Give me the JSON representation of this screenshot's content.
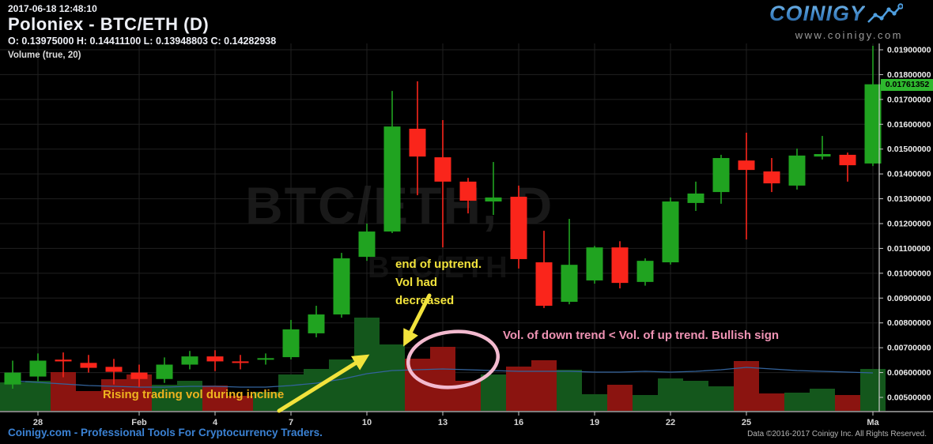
{
  "header": {
    "timestamp": "2017-06-18 12:48:10",
    "title": "Poloniex - BTC/ETH (D)",
    "ohlc_line": "O: 0.13975000 H: 0.14411100 L: 0.13948803 C: 0.14282938",
    "indicator_label": "Volume (true, 20)"
  },
  "logo": {
    "brand": "COINIGY",
    "url_text": "www.coinigy.com"
  },
  "watermark": {
    "line1": "BTC/ETH, D",
    "line2": "BTC/ETH"
  },
  "annotations": {
    "end_line1": "end of uptrend.",
    "end_line2": "Vol had",
    "end_line3": "decreased",
    "rising_vol": "Rising trading vol during incline",
    "bullish": "Vol. of down trend < Vol. of up trend. Bullish sign"
  },
  "footer": {
    "left": "Coinigy.com - Professional Tools For Cryptocurrency Traders.",
    "right": "Data ©2016-2017 Coinigy Inc. All Rights Reserved."
  },
  "colors": {
    "candle_up": "#20a320",
    "candle_down": "#fa251b",
    "vol_up": "#14571c",
    "vol_down": "#8b1410",
    "grid": "#202020",
    "axis": "#c8c8c8",
    "vol_ma": "#33639c",
    "badge_green": "#2eb82e",
    "accent_yellow": "#f2e33c",
    "accent_orange": "#eeb31f",
    "accent_pink": "#ef93b4",
    "logo_blue": "#4f9fe0",
    "footer_blue": "#3b82d4"
  },
  "price_axis": {
    "current_price": "0.01761352",
    "min": 0.005,
    "max": 0.019,
    "labels": [
      "0.01900000",
      "0.01800000",
      "0.01700000",
      "0.01600000",
      "0.01500000",
      "0.01400000",
      "0.01300000",
      "0.01200000",
      "0.01100000",
      "0.01000000",
      "0.00900000",
      "0.00800000",
      "0.00700000",
      "0.00600000",
      "0.00500000"
    ]
  },
  "time_axis": {
    "ticks": [
      {
        "label": "28",
        "day_index": 1
      },
      {
        "label": "Feb",
        "day_index": 5
      },
      {
        "label": "4",
        "day_index": 8
      },
      {
        "label": "7",
        "day_index": 11
      },
      {
        "label": "10",
        "day_index": 14
      },
      {
        "label": "13",
        "day_index": 17
      },
      {
        "label": "16",
        "day_index": 20
      },
      {
        "label": "19",
        "day_index": 23
      },
      {
        "label": "22",
        "day_index": 26
      },
      {
        "label": "25",
        "day_index": 29
      },
      {
        "label": "Ma",
        "day_index": 34
      }
    ]
  },
  "chart_data": {
    "type": "candlestick+volume",
    "symbol_note": "prices read from right axis 0.00500000-0.01900000; volume in relative units",
    "candles": [
      {
        "d": "Jan 27",
        "o": 0.00552,
        "h": 0.00648,
        "l": 0.00535,
        "c": 0.006,
        "v": 36
      },
      {
        "d": "Jan 28",
        "o": 0.00584,
        "h": 0.00677,
        "l": 0.00565,
        "c": 0.00648,
        "v": 38
      },
      {
        "d": "Jan 29",
        "o": 0.00652,
        "h": 0.00681,
        "l": 0.00581,
        "c": 0.00645,
        "v": 49
      },
      {
        "d": "Jan 30",
        "o": 0.00639,
        "h": 0.00671,
        "l": 0.006,
        "c": 0.00619,
        "v": 25
      },
      {
        "d": "Jan 31",
        "o": 0.00623,
        "h": 0.00655,
        "l": 0.00552,
        "c": 0.00603,
        "v": 40
      },
      {
        "d": "Feb 1",
        "o": 0.006,
        "h": 0.00632,
        "l": 0.00542,
        "c": 0.00574,
        "v": 46
      },
      {
        "d": "Feb 2",
        "o": 0.00574,
        "h": 0.00661,
        "l": 0.00558,
        "c": 0.00632,
        "v": 33
      },
      {
        "d": "Feb 3",
        "o": 0.00632,
        "h": 0.00687,
        "l": 0.00613,
        "c": 0.00665,
        "v": 38
      },
      {
        "d": "Feb 4",
        "o": 0.00665,
        "h": 0.0069,
        "l": 0.00606,
        "c": 0.00645,
        "v": 32
      },
      {
        "d": "Feb 5",
        "o": 0.00645,
        "h": 0.00671,
        "l": 0.00613,
        "c": 0.00639,
        "v": 19
      },
      {
        "d": "Feb 6",
        "o": 0.00652,
        "h": 0.00677,
        "l": 0.00632,
        "c": 0.00658,
        "v": 24
      },
      {
        "d": "Feb 7",
        "o": 0.00662,
        "h": 0.00812,
        "l": 0.00653,
        "c": 0.00774,
        "v": 46
      },
      {
        "d": "Feb 8",
        "o": 0.00758,
        "h": 0.00869,
        "l": 0.00742,
        "c": 0.00834,
        "v": 53
      },
      {
        "d": "Feb 9",
        "o": 0.00834,
        "h": 0.01082,
        "l": 0.00821,
        "c": 0.0106,
        "v": 65
      },
      {
        "d": "Feb 10",
        "o": 0.01066,
        "h": 0.012,
        "l": 0.0105,
        "c": 0.01168,
        "v": 118
      },
      {
        "d": "Feb 11",
        "o": 0.01168,
        "h": 0.01734,
        "l": 0.01162,
        "c": 0.01591,
        "v": 84
      },
      {
        "d": "Feb 12",
        "o": 0.01582,
        "h": 0.01773,
        "l": 0.01314,
        "c": 0.0147,
        "v": 66
      },
      {
        "d": "Feb 13",
        "o": 0.01467,
        "h": 0.01617,
        "l": 0.01104,
        "c": 0.01369,
        "v": 81
      },
      {
        "d": "Feb 14",
        "o": 0.01369,
        "h": 0.01384,
        "l": 0.01241,
        "c": 0.01292,
        "v": 38
      },
      {
        "d": "Feb 15",
        "o": 0.01289,
        "h": 0.01448,
        "l": 0.01235,
        "c": 0.01305,
        "v": 46
      },
      {
        "d": "Feb 16",
        "o": 0.01308,
        "h": 0.01353,
        "l": 0.01019,
        "c": 0.01057,
        "v": 56
      },
      {
        "d": "Feb 17",
        "o": 0.01044,
        "h": 0.01171,
        "l": 0.0086,
        "c": 0.00869,
        "v": 64
      },
      {
        "d": "Feb 18",
        "o": 0.00885,
        "h": 0.01219,
        "l": 0.00875,
        "c": 0.01034,
        "v": 52
      },
      {
        "d": "Feb 19",
        "o": 0.00971,
        "h": 0.0111,
        "l": 0.00958,
        "c": 0.01104,
        "v": 21
      },
      {
        "d": "Feb 20",
        "o": 0.01104,
        "h": 0.01129,
        "l": 0.00939,
        "c": 0.00961,
        "v": 33
      },
      {
        "d": "Feb 21",
        "o": 0.00965,
        "h": 0.0106,
        "l": 0.0095,
        "c": 0.0105,
        "v": 20
      },
      {
        "d": "Feb 22",
        "o": 0.01044,
        "h": 0.01305,
        "l": 0.01035,
        "c": 0.01289,
        "v": 41
      },
      {
        "d": "Feb 23",
        "o": 0.01283,
        "h": 0.01369,
        "l": 0.01251,
        "c": 0.01321,
        "v": 38
      },
      {
        "d": "Feb 24",
        "o": 0.01327,
        "h": 0.01477,
        "l": 0.0128,
        "c": 0.01464,
        "v": 31
      },
      {
        "d": "Feb 25",
        "o": 0.01454,
        "h": 0.01566,
        "l": 0.01136,
        "c": 0.01416,
        "v": 63
      },
      {
        "d": "Feb 26",
        "o": 0.0141,
        "h": 0.01464,
        "l": 0.01327,
        "c": 0.01362,
        "v": 22
      },
      {
        "d": "Feb 27",
        "o": 0.01353,
        "h": 0.01502,
        "l": 0.01337,
        "c": 0.01474,
        "v": 23
      },
      {
        "d": "Feb 28",
        "o": 0.0147,
        "h": 0.01553,
        "l": 0.01458,
        "c": 0.0148,
        "v": 28
      },
      {
        "d": "Mar 1",
        "o": 0.01477,
        "h": 0.01486,
        "l": 0.01369,
        "c": 0.01435,
        "v": 20
      },
      {
        "d": "Mar 2",
        "o": 0.01442,
        "h": 0.01916,
        "l": 0.01432,
        "c": 0.01761,
        "v": 53
      }
    ],
    "volume_ma": [
      38,
      36,
      34,
      32,
      31,
      30,
      30,
      31,
      31,
      30,
      30,
      32,
      35,
      40,
      47,
      51,
      52,
      53,
      52,
      51,
      50,
      50,
      50,
      49,
      49,
      50,
      49,
      50,
      52,
      55,
      53,
      51,
      50,
      49,
      48
    ]
  }
}
